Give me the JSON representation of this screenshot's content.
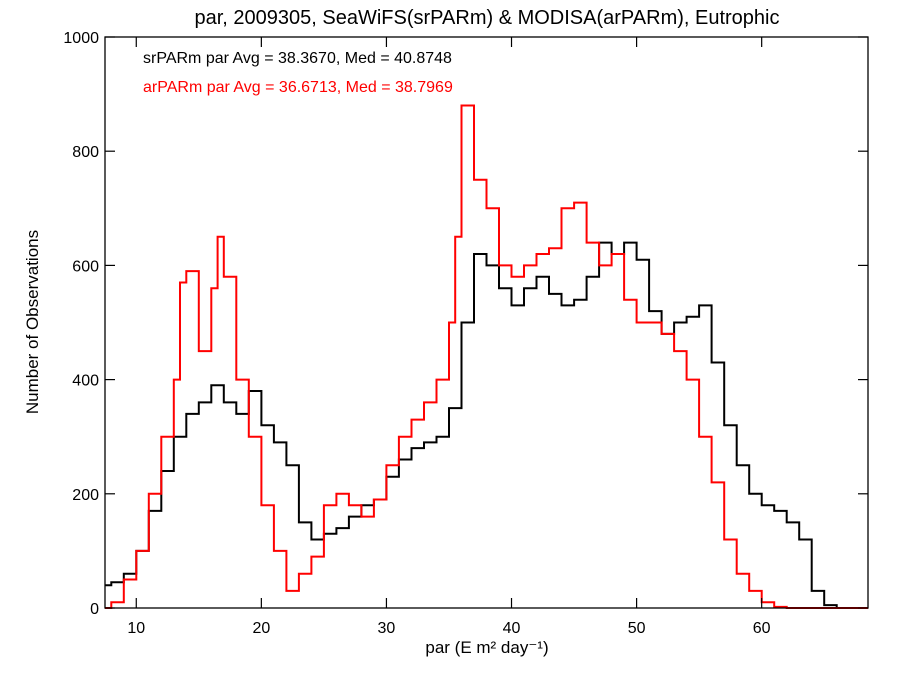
{
  "chart_data": {
    "type": "line",
    "step": true,
    "title": "par, 2009305, SeaWiFS(srPARm) & MODISA(arPARm), Eutrophic",
    "xlabel": "par (E m² day⁻¹)",
    "ylabel": "Number of Observations",
    "xlim": [
      7.5,
      68.5
    ],
    "ylim": [
      0,
      1000
    ],
    "xticks": [
      10,
      20,
      30,
      40,
      50,
      60
    ],
    "yticks": [
      0,
      200,
      400,
      600,
      800,
      1000
    ],
    "grid": false,
    "annotations": [
      {
        "text": "srPARm par Avg = 38.3670, Med = 40.8748",
        "color": "#000000"
      },
      {
        "text": "arPARm par Avg = 36.6713, Med = 38.7969",
        "color": "#ff0000"
      }
    ],
    "series": [
      {
        "color": "#000000",
        "x": [
          7.5,
          8,
          9,
          10,
          11,
          12,
          13,
          14,
          15,
          16,
          17,
          18,
          19,
          20,
          21,
          22,
          23,
          24,
          25,
          26,
          27,
          28,
          29,
          30,
          31,
          32,
          33,
          34,
          35,
          36,
          37,
          38,
          39,
          40,
          41,
          42,
          43,
          44,
          45,
          46,
          47,
          48,
          49,
          50,
          51,
          52,
          53,
          54,
          55,
          56,
          57,
          58,
          59,
          60,
          61,
          62,
          63,
          64,
          65,
          66,
          67,
          68.5
        ],
        "y": [
          40,
          45,
          60,
          100,
          170,
          240,
          300,
          340,
          360,
          390,
          360,
          340,
          380,
          320,
          290,
          250,
          150,
          120,
          130,
          140,
          160,
          180,
          190,
          230,
          260,
          280,
          290,
          300,
          350,
          500,
          620,
          600,
          560,
          530,
          560,
          580,
          550,
          530,
          540,
          580,
          640,
          620,
          640,
          610,
          520,
          480,
          500,
          510,
          530,
          430,
          320,
          250,
          200,
          180,
          170,
          150,
          120,
          30,
          5,
          0,
          0,
          0
        ]
      },
      {
        "color": "#ff0000",
        "x": [
          7.5,
          8,
          9,
          10,
          11,
          12,
          13,
          13.5,
          14,
          15,
          16,
          16.5,
          17,
          18,
          19,
          20,
          21,
          22,
          23,
          24,
          25,
          26,
          27,
          28,
          29,
          30,
          31,
          32,
          33,
          34,
          35,
          35.5,
          36,
          37,
          38,
          39,
          40,
          41,
          42,
          43,
          44,
          45,
          46,
          47,
          48,
          49,
          50,
          51,
          52,
          53,
          54,
          55,
          56,
          57,
          58,
          59,
          60,
          61,
          62,
          63,
          64,
          65,
          66,
          67,
          68.5
        ],
        "y": [
          0,
          10,
          50,
          100,
          200,
          300,
          400,
          570,
          590,
          450,
          560,
          650,
          580,
          400,
          300,
          180,
          100,
          30,
          60,
          90,
          180,
          200,
          180,
          160,
          190,
          250,
          300,
          330,
          360,
          400,
          500,
          650,
          880,
          750,
          700,
          600,
          580,
          600,
          620,
          630,
          700,
          710,
          640,
          600,
          620,
          540,
          500,
          500,
          480,
          450,
          400,
          300,
          220,
          120,
          60,
          30,
          10,
          2,
          0,
          0,
          0,
          0,
          0,
          0,
          0
        ]
      }
    ]
  }
}
